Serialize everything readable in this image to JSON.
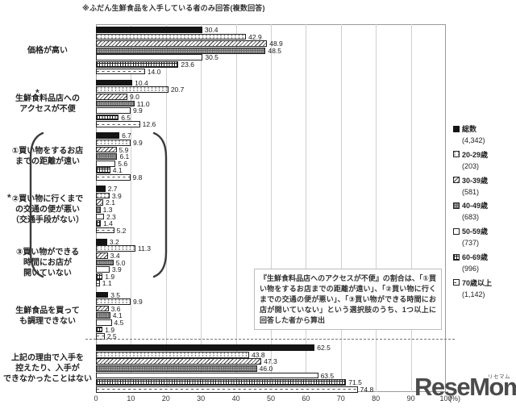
{
  "title": "※ふだん生鮮食品を入手している者のみ回答(複数回答)",
  "chart_data": {
    "type": "bar",
    "orientation": "horizontal",
    "x_axis": {
      "min": 0,
      "max": 100,
      "ticks": [
        "0",
        "10",
        "20",
        "30",
        "40",
        "50",
        "60",
        "70",
        "80",
        "90",
        "100"
      ],
      "unit": "(%)",
      "grid": true
    },
    "legend_position": "right",
    "categories": [
      {
        "lines": [
          "価格が高い"
        ],
        "asterisk": false
      },
      {
        "lines": [
          "生鮮食料品店への",
          "アクセスが不便"
        ],
        "asterisk": true
      },
      {
        "lines": [
          "①買い物をするお店",
          "までの距離が遠い"
        ],
        "bracket_group": true
      },
      {
        "lines": [
          "②買い物に行くまで",
          "の交通の便が悪い",
          "（交通手段がない）"
        ],
        "bracket_group": true
      },
      {
        "lines": [
          "③買い物ができる",
          "時間にお店が",
          "開いていない"
        ],
        "bracket_group": true
      },
      {
        "lines": [
          "生鮮食品を買って",
          "も調理できない"
        ],
        "asterisk": false
      },
      {
        "lines": [
          "上記の理由で入手を",
          "控えたり、入手が",
          "できなかったことはない"
        ],
        "asterisk": false
      }
    ],
    "series": [
      {
        "name": "総数",
        "count": "(4,342)",
        "pattern": "solid",
        "values": [
          30.4,
          10.4,
          6.7,
          2.7,
          3.2,
          3.5,
          62.5
        ]
      },
      {
        "name": "20-29歳",
        "count": "(203)",
        "pattern": "dots",
        "values": [
          42.9,
          20.7,
          9.9,
          3.9,
          11.3,
          9.9,
          43.8
        ]
      },
      {
        "name": "30-39歳",
        "count": "(581)",
        "pattern": "diag",
        "values": [
          48.9,
          9.0,
          5.9,
          2.1,
          3.4,
          3.6,
          47.3
        ]
      },
      {
        "name": "40-49歳",
        "count": "(683)",
        "pattern": "graygrid",
        "values": [
          48.5,
          11.0,
          6.1,
          1.3,
          5.0,
          4.1,
          46.0
        ]
      },
      {
        "name": "50-59歳",
        "count": "(737)",
        "pattern": "plain",
        "values": [
          30.5,
          9.9,
          5.6,
          2.3,
          3.9,
          4.5,
          63.5
        ]
      },
      {
        "name": "60-69歳",
        "count": "(996)",
        "pattern": "grid",
        "values": [
          23.6,
          6.5,
          4.1,
          1.4,
          1.9,
          1.9,
          71.5
        ]
      },
      {
        "name": "70歳以上",
        "count": "(1,142)",
        "pattern": "dash",
        "values": [
          14.0,
          12.6,
          9.8,
          5.2,
          1.1,
          2.5,
          74.8
        ]
      }
    ],
    "separator_dashed_before_last_category": true
  },
  "annotations": {
    "asterisk_symbol": "*",
    "note_box": "『生鮮食料品店へのアクセスが不便』の割合は、「①買い物をするお店までの距離が遠い」、「②買い物に行くまでの交通の便が悪い」、「③買い物ができる時間にお店が開いていない」という選択肢のうち、1つ以上に回答した者から算出"
  },
  "watermark": {
    "text": "ReseMom.",
    "ruby": "リセマム"
  },
  "colors": {
    "bar_black": "#141414",
    "bar_border": "#222222",
    "gray_fill": "#a3a3a3",
    "grid_line": "#cfcfcf",
    "plot_border": "#9a9a9a",
    "text": "#222222",
    "watermark": "#4b4b4b",
    "background": "#ffffff"
  }
}
